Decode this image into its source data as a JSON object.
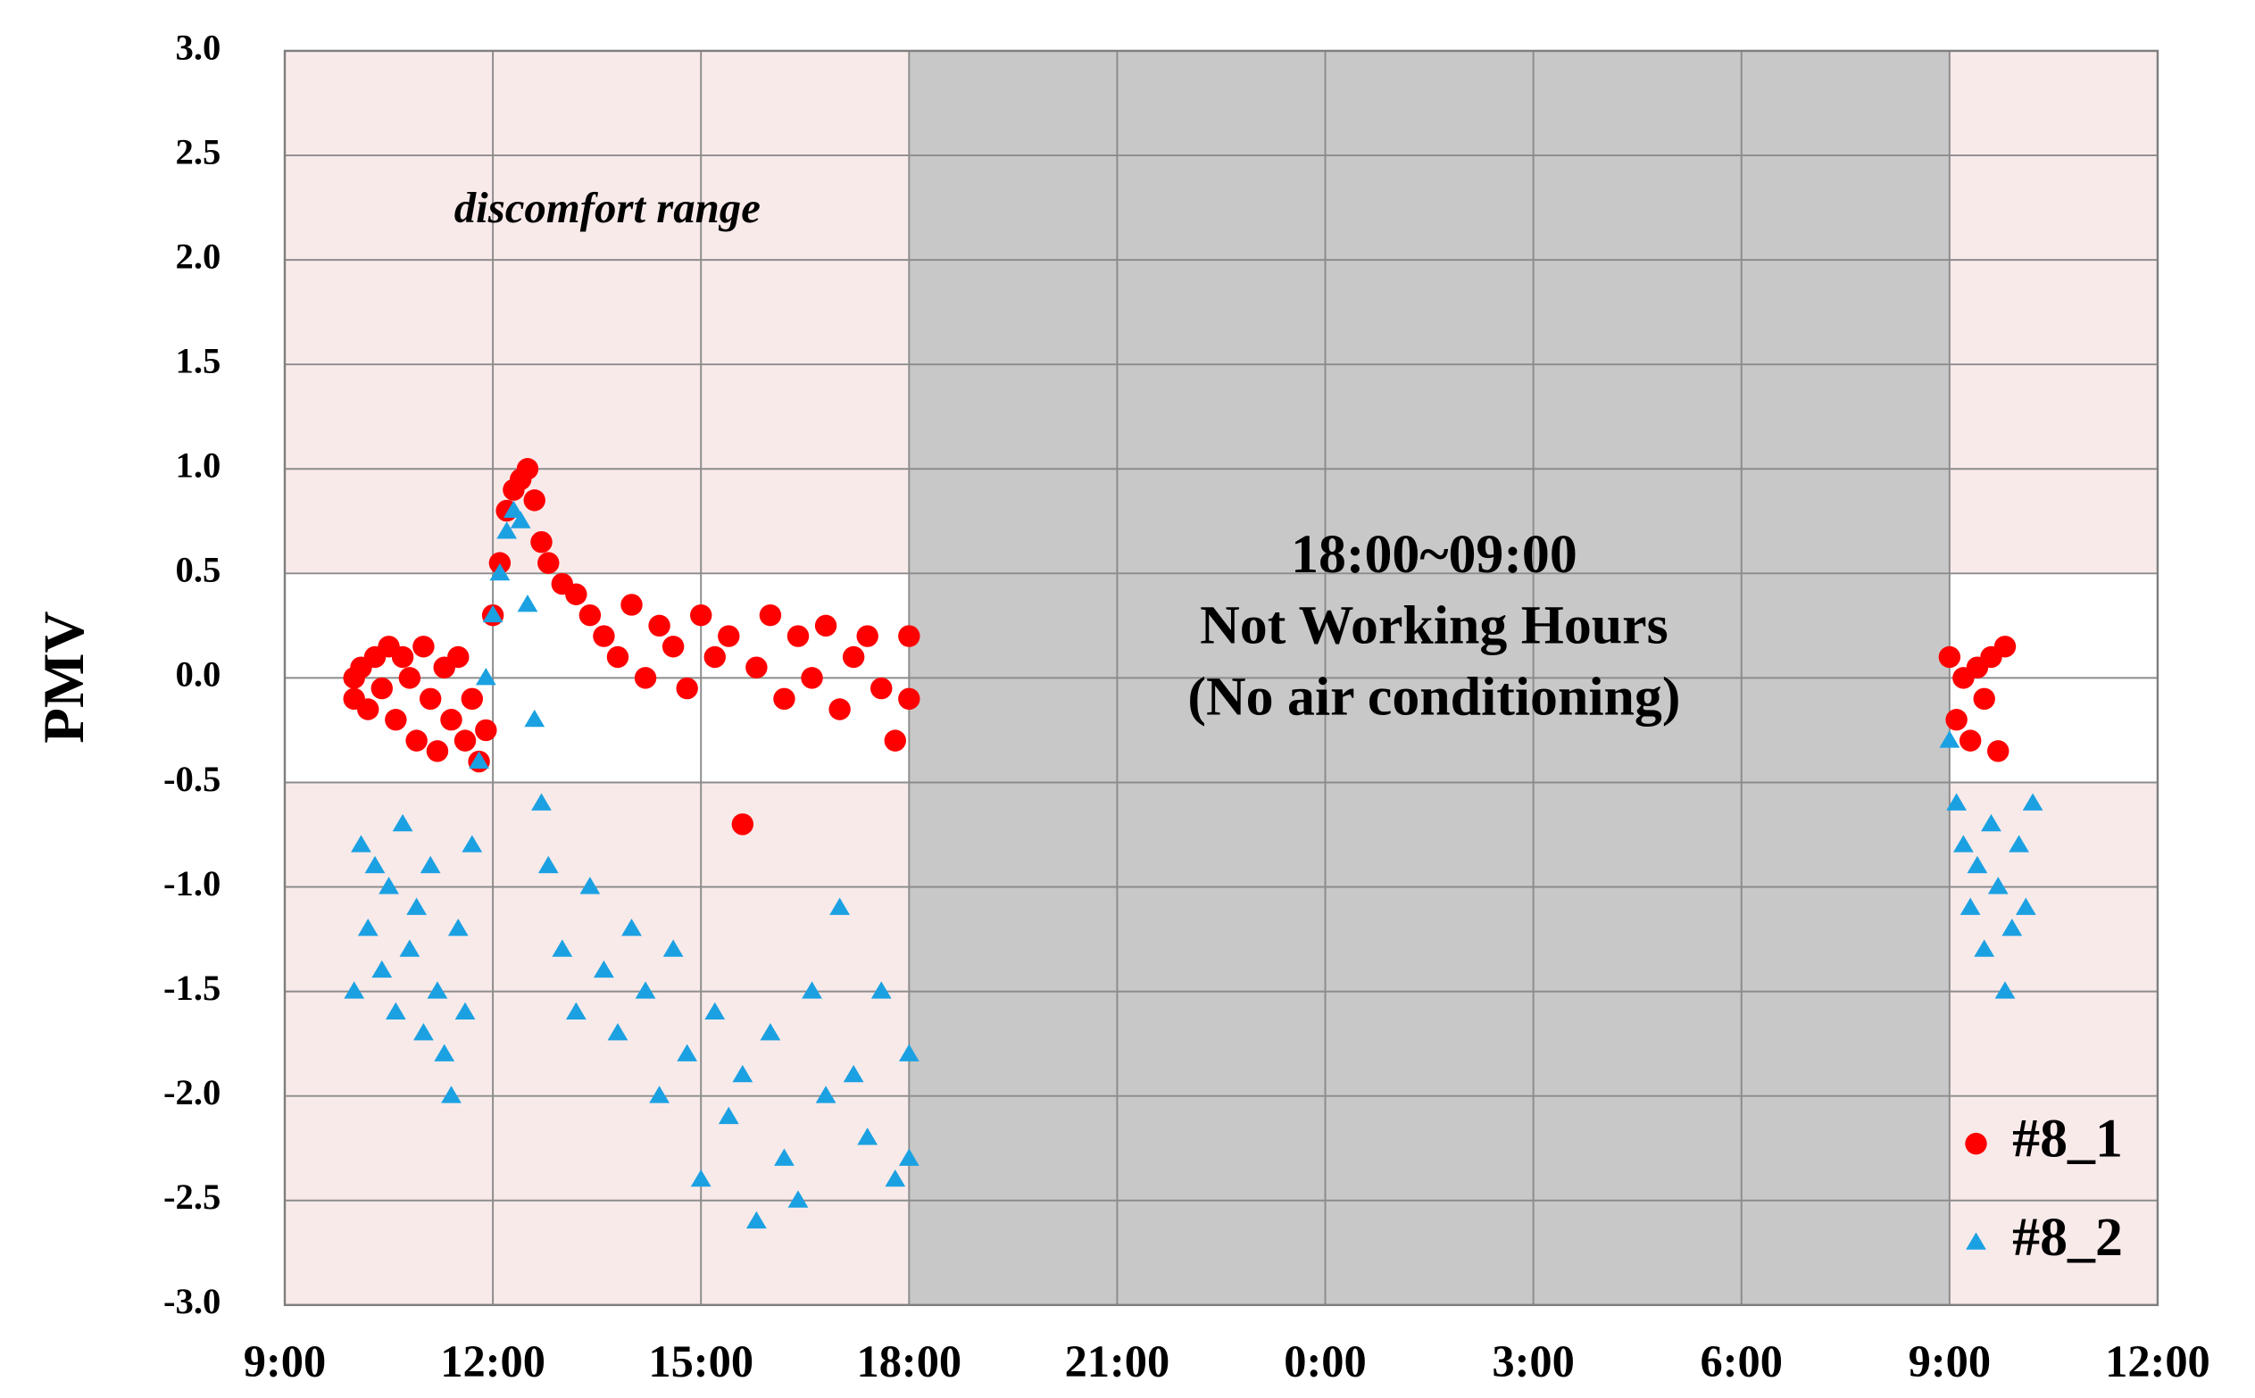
{
  "chart_data": {
    "type": "scatter",
    "y_label": "PMV",
    "annotations": [
      "discomfort range",
      "18:00~09:00",
      "Not Working Hours",
      "(No air conditioning)"
    ],
    "xlim": [
      9,
      36
    ],
    "xticks": [
      {
        "value": 9,
        "label": "9:00"
      },
      {
        "value": 12,
        "label": "12:00"
      },
      {
        "value": 15,
        "label": "15:00"
      },
      {
        "value": 18,
        "label": "18:00"
      },
      {
        "value": 21,
        "label": "21:00"
      },
      {
        "value": 24,
        "label": "0:00"
      },
      {
        "value": 27,
        "label": "3:00"
      },
      {
        "value": 30,
        "label": "6:00"
      },
      {
        "value": 33,
        "label": "9:00"
      },
      {
        "value": 36,
        "label": "12:00"
      }
    ],
    "ylim": [
      -3,
      3
    ],
    "yticks": [
      {
        "value": -3,
        "label": "-3.0"
      },
      -2.5,
      {
        "value": -2,
        "label": "-2.0"
      },
      -1.5,
      {
        "value": -1,
        "label": "-1.0"
      },
      -0.5,
      {
        "value": 0,
        "label": "0.0"
      },
      0.5,
      {
        "value": 1,
        "label": "1.0"
      },
      1.5,
      {
        "value": 2,
        "label": "2.0"
      },
      2.5,
      {
        "value": 3,
        "label": "3.0"
      }
    ],
    "grid": true,
    "comfort_range": [
      -0.5,
      0.5
    ],
    "off_hours": [
      18,
      33
    ],
    "legend": "lower right",
    "series": [
      {
        "name": "#8_1",
        "color": "#ff0000",
        "marker": "circle",
        "x": [
          10.0,
          10.0,
          10.1,
          10.2,
          10.3,
          10.4,
          10.5,
          10.6,
          10.7,
          10.8,
          10.9,
          11.0,
          11.1,
          11.2,
          11.3,
          11.4,
          11.5,
          11.6,
          11.7,
          11.8,
          11.9,
          12.0,
          12.1,
          12.2,
          12.3,
          12.4,
          12.5,
          12.6,
          12.7,
          12.8,
          13.0,
          13.2,
          13.4,
          13.6,
          13.8,
          14.0,
          14.2,
          14.4,
          14.6,
          14.8,
          15.0,
          15.2,
          15.4,
          15.6,
          15.8,
          16.0,
          16.2,
          16.4,
          16.6,
          16.8,
          17.0,
          17.2,
          17.4,
          17.6,
          17.8,
          18.0,
          18.0,
          33.0,
          33.1,
          33.2,
          33.3,
          33.4,
          33.5,
          33.6,
          33.7,
          33.8
        ],
        "values": [
          0.0,
          -0.1,
          0.05,
          -0.15,
          0.1,
          -0.05,
          0.15,
          -0.2,
          0.1,
          0.0,
          -0.3,
          0.15,
          -0.1,
          -0.35,
          0.05,
          -0.2,
          0.1,
          -0.3,
          -0.1,
          -0.4,
          -0.25,
          0.3,
          0.55,
          0.8,
          0.9,
          0.95,
          1.0,
          0.85,
          0.65,
          0.55,
          0.45,
          0.4,
          0.3,
          0.2,
          0.1,
          0.35,
          0.0,
          0.25,
          0.15,
          -0.05,
          0.3,
          0.1,
          0.2,
          -0.7,
          0.05,
          0.3,
          -0.1,
          0.2,
          0.0,
          0.25,
          -0.15,
          0.1,
          0.2,
          -0.05,
          -0.3,
          0.2,
          -0.1,
          0.1,
          -0.2,
          0.0,
          -0.3,
          0.05,
          -0.1,
          0.1,
          -0.35,
          0.15
        ]
      },
      {
        "name": "#8_2",
        "color": "#1ba1e2",
        "marker": "triangle",
        "x": [
          10.0,
          10.1,
          10.2,
          10.3,
          10.4,
          10.5,
          10.6,
          10.7,
          10.8,
          10.9,
          11.0,
          11.1,
          11.2,
          11.3,
          11.4,
          11.5,
          11.6,
          11.7,
          11.8,
          11.9,
          12.0,
          12.1,
          12.2,
          12.3,
          12.4,
          12.5,
          12.6,
          12.7,
          12.8,
          13.0,
          13.2,
          13.4,
          13.6,
          13.8,
          14.0,
          14.2,
          14.4,
          14.6,
          14.8,
          15.0,
          15.2,
          15.4,
          15.6,
          15.8,
          16.0,
          16.2,
          16.4,
          16.6,
          16.8,
          17.0,
          17.2,
          17.4,
          17.6,
          17.8,
          18.0,
          18.0,
          33.0,
          33.1,
          33.2,
          33.3,
          33.4,
          33.5,
          33.6,
          33.7,
          33.8,
          33.9,
          34.0,
          34.1,
          34.2
        ],
        "values": [
          -1.5,
          -0.8,
          -1.2,
          -0.9,
          -1.4,
          -1.0,
          -1.6,
          -0.7,
          -1.3,
          -1.1,
          -1.7,
          -0.9,
          -1.5,
          -1.8,
          -2.0,
          -1.2,
          -1.6,
          -0.8,
          -0.4,
          0.0,
          0.3,
          0.5,
          0.7,
          0.8,
          0.75,
          0.35,
          -0.2,
          -0.6,
          -0.9,
          -1.3,
          -1.6,
          -1.0,
          -1.4,
          -1.7,
          -1.2,
          -1.5,
          -2.0,
          -1.3,
          -1.8,
          -2.4,
          -1.6,
          -2.1,
          -1.9,
          -2.6,
          -1.7,
          -2.3,
          -2.5,
          -1.5,
          -2.0,
          -1.1,
          -1.9,
          -2.2,
          -1.5,
          -2.4,
          -1.8,
          -2.3,
          -0.3,
          -0.6,
          -0.8,
          -1.1,
          -0.9,
          -1.3,
          -0.7,
          -1.0,
          -1.5,
          -1.2,
          -0.8,
          -1.1,
          -0.6
        ]
      }
    ]
  }
}
